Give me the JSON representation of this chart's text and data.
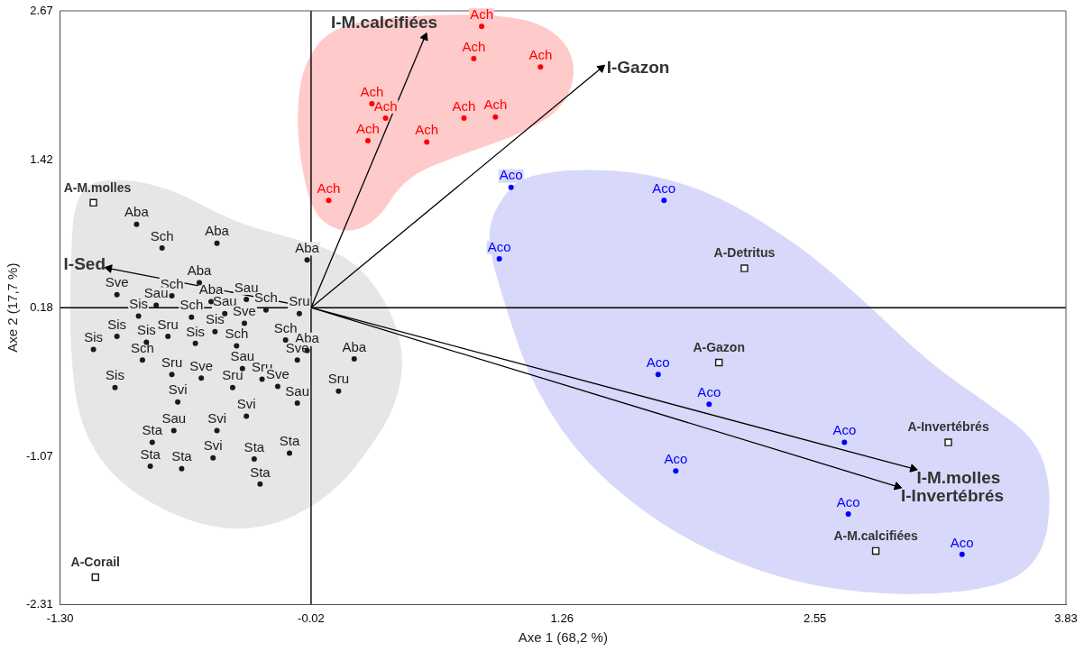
{
  "chart_data": {
    "type": "scatter",
    "xlabel": "Axe 1 (68,2 %)",
    "ylabel": "Axe 2 (17,7 %)",
    "xlim": [
      -1.3,
      3.83
    ],
    "ylim": [
      -2.31,
      2.67
    ],
    "xticks": [
      {
        "value": -1.3,
        "label": "-1.30"
      },
      -0.02,
      1.26,
      2.55,
      3.83
    ],
    "yticks": [
      -2.31,
      -1.07,
      0.18,
      1.42,
      2.67
    ],
    "ref_lines": [
      {
        "axis": "x",
        "value": -0.02,
        "color": "#000000"
      },
      {
        "axis": "y",
        "value": 0.18,
        "color": "#000000"
      }
    ],
    "annotations": [
      {
        "text": "I-M.calcifiées",
        "x": 0.56,
        "y": 2.45
      },
      {
        "text": "I-Gazon",
        "x": 1.46,
        "y": 2.19
      },
      {
        "text": "I-Sed",
        "x": -1.05,
        "y": 0.51
      },
      {
        "text": "I-M.molles",
        "x": 3.05,
        "y": -1.17
      },
      {
        "text": "I-Invertébrés",
        "x": 2.97,
        "y": -1.32
      }
    ],
    "series": [
      {
        "marker": "circle",
        "color": "#1a1a1a",
        "x": [
          -0.91,
          -0.78,
          -0.5,
          -0.04,
          -0.59,
          -1.01,
          -0.73,
          -0.81,
          -0.53,
          -0.35,
          -0.25,
          -0.08,
          -0.9,
          -0.63,
          -0.46,
          -0.36,
          -1.01,
          -0.86,
          -0.75,
          -0.51,
          -0.15,
          -0.4,
          -0.61,
          -0.04,
          0.2,
          -1.13,
          -0.88,
          -0.73,
          -0.58,
          -0.37,
          -0.27,
          -0.42,
          -0.19,
          -0.09,
          -0.09,
          0.12,
          -1.02,
          -0.7,
          -0.35,
          -0.72,
          -0.5,
          -0.83,
          -0.13,
          -0.84,
          -0.68,
          -0.52,
          -0.31,
          -0.28
        ],
        "values": [
          0.88,
          0.68,
          0.72,
          0.58,
          0.39,
          0.29,
          0.28,
          0.2,
          0.23,
          0.25,
          0.16,
          0.13,
          0.11,
          0.1,
          0.13,
          0.05,
          -0.06,
          -0.11,
          -0.06,
          -0.02,
          -0.09,
          -0.14,
          -0.12,
          -0.18,
          -0.25,
          -0.17,
          -0.26,
          -0.38,
          -0.41,
          -0.33,
          -0.42,
          -0.49,
          -0.48,
          -0.26,
          -0.62,
          -0.52,
          -0.49,
          -0.61,
          -0.73,
          -0.85,
          -0.85,
          -0.95,
          -1.04,
          -1.15,
          -1.17,
          -1.08,
          -1.09,
          -1.3
        ],
        "value_labels": [
          "Aba",
          "Sch",
          "Aba",
          "Aba",
          "Aba",
          "Sve",
          "Sch",
          "Sau",
          "Aba",
          "Sau",
          "Sch",
          "Sru",
          "Sis",
          "Sch",
          "Sau",
          "Sve",
          "Sis",
          "Sis",
          "Sru",
          "Sis",
          "Sch",
          "Sch",
          "Sis",
          "Aba",
          "Aba",
          "Sis",
          "Sch",
          "Sru",
          "Sve",
          "Sau",
          "Sru",
          "Sru",
          "Sve",
          "Sve",
          "Sau",
          "Sru",
          "Sis",
          "Svi",
          "Svi",
          "Sau",
          "Svi",
          "Sta",
          "Sta",
          "Sta",
          "Sta",
          "Svi",
          "Sta",
          "Sta"
        ]
      },
      {
        "marker": "circle",
        "color": "#ff0000",
        "x": [
          0.85,
          0.81,
          1.15,
          0.29,
          0.36,
          0.27,
          0.57,
          0.76,
          0.92,
          0.07
        ],
        "values": [
          2.54,
          2.27,
          2.2,
          1.89,
          1.77,
          1.58,
          1.57,
          1.77,
          1.78,
          1.08
        ],
        "value_labels": [
          "Ach",
          "Ach",
          "Ach",
          "Ach",
          "Ach",
          "Ach",
          "Ach",
          "Ach",
          "Ach",
          "Ach"
        ]
      },
      {
        "marker": "circle",
        "color": "#0000ff",
        "x": [
          1.0,
          1.78,
          0.94,
          1.75,
          2.01,
          2.7,
          1.84,
          2.72,
          3.3
        ],
        "values": [
          1.19,
          1.08,
          0.59,
          -0.38,
          -0.63,
          -0.95,
          -1.19,
          -1.55,
          -1.89
        ],
        "value_labels": [
          "Aco",
          "Aco",
          "Aco",
          "Aco",
          "Aco",
          "Aco",
          "Aco",
          "Aco",
          "Aco"
        ]
      },
      {
        "marker": "square",
        "color": "#1a1a1a",
        "x": [
          -1.13,
          -1.12,
          2.19,
          2.06,
          3.23,
          2.86
        ],
        "values": [
          1.06,
          -2.08,
          0.51,
          -0.28,
          -0.95,
          -1.86
        ],
        "value_labels": [
          "A-M.molles",
          "A-Corail",
          "A-Detritus",
          "A-Gazon",
          "A-Invertébrés",
          "A-M.calcifiées"
        ]
      },
      {
        "type": "line",
        "marker": "triangle",
        "color": "#000000",
        "x": [
          -0.02,
          0.56,
          -0.02,
          1.46,
          -0.02,
          -1.05,
          -0.02,
          3.05,
          -0.02,
          2.97
        ],
        "values": [
          0.18,
          2.45,
          0.18,
          2.19,
          0.18,
          0.51,
          0.18,
          -1.17,
          0.18,
          -1.32
        ]
      }
    ]
  }
}
